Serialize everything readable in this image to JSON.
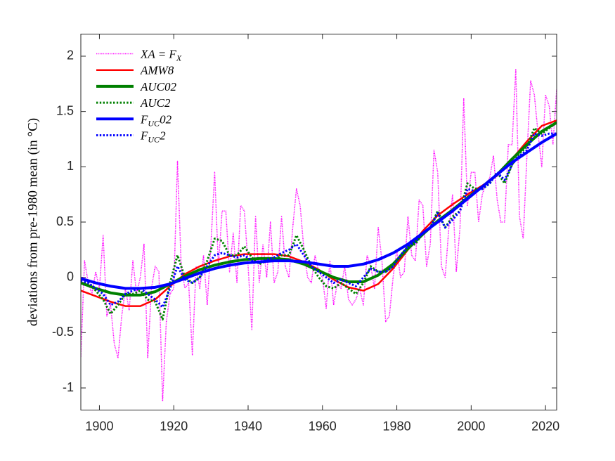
{
  "chart_data": {
    "type": "line",
    "ylabel": "deviations from pre-1980 mean (in °C)",
    "xlim": [
      1895,
      2023
    ],
    "ylim": [
      -1.2,
      2.2
    ],
    "xticks": [
      1900,
      1920,
      1940,
      1960,
      1980,
      2000,
      2020
    ],
    "yticks": [
      -1,
      -0.5,
      0,
      0.5,
      1,
      1.5,
      2
    ],
    "grid": false,
    "legend": "upper left",
    "series": [
      {
        "name": "XA = F_{X}",
        "color": "#ff00ff",
        "linestyle": "dotted",
        "linewidth": 1.5,
        "x": [
          1895,
          1896,
          1897,
          1898,
          1899,
          1900,
          1901,
          1902,
          1903,
          1904,
          1905,
          1906,
          1907,
          1908,
          1909,
          1910,
          1911,
          1912,
          1913,
          1914,
          1915,
          1916,
          1917,
          1918,
          1919,
          1920,
          1921,
          1922,
          1923,
          1924,
          1925,
          1926,
          1927,
          1928,
          1929,
          1930,
          1931,
          1932,
          1933,
          1934,
          1935,
          1936,
          1937,
          1938,
          1939,
          1940,
          1941,
          1942,
          1943,
          1944,
          1945,
          1946,
          1947,
          1948,
          1949,
          1950,
          1951,
          1952,
          1953,
          1954,
          1955,
          1956,
          1957,
          1958,
          1959,
          1960,
          1961,
          1962,
          1963,
          1964,
          1965,
          1966,
          1967,
          1968,
          1969,
          1970,
          1971,
          1972,
          1973,
          1974,
          1975,
          1976,
          1977,
          1978,
          1979,
          1980,
          1981,
          1982,
          1983,
          1984,
          1985,
          1986,
          1987,
          1988,
          1989,
          1990,
          1991,
          1992,
          1993,
          1994,
          1995,
          1996,
          1997,
          1998,
          1999,
          2000,
          2001,
          2002,
          2003,
          2004,
          2005,
          2006,
          2007,
          2008,
          2009,
          2010,
          2011,
          2012,
          2013,
          2014,
          2015,
          2016,
          2017,
          2018,
          2019,
          2020,
          2021,
          2022,
          2023
        ],
        "values": [
          -0.72,
          0.15,
          -0.05,
          -0.15,
          0.05,
          -0.1,
          0.38,
          -0.35,
          -0.25,
          -0.6,
          -0.73,
          -0.35,
          -0.1,
          -0.3,
          0.15,
          -0.15,
          0.0,
          0.3,
          -0.73,
          -0.1,
          0.1,
          0.05,
          -1.12,
          -0.4,
          -0.15,
          -0.1,
          1.05,
          0.1,
          -0.1,
          -0.05,
          -0.7,
          0.1,
          -0.1,
          0.2,
          -0.25,
          0.3,
          0.95,
          0.1,
          0.6,
          0.6,
          0.05,
          0.4,
          -0.05,
          0.65,
          0.6,
          0.1,
          -0.48,
          0.55,
          -0.05,
          0.3,
          0.0,
          0.5,
          -0.05,
          0.05,
          0.55,
          0.1,
          0.0,
          0.45,
          0.8,
          0.65,
          0.25,
          0.0,
          -0.05,
          0.2,
          0.05,
          0.0,
          -0.28,
          0.15,
          -0.25,
          -0.05,
          -0.1,
          0.1,
          -0.2,
          -0.25,
          -0.2,
          -0.1,
          -0.25,
          0.2,
          0.1,
          -0.1,
          0.45,
          0.15,
          -0.4,
          -0.35,
          0.0,
          0.25,
          0.0,
          0.05,
          0.55,
          0.2,
          0.15,
          0.7,
          0.65,
          0.1,
          0.3,
          1.15,
          0.95,
          0.1,
          0.0,
          0.45,
          0.75,
          0.05,
          0.45,
          1.62,
          0.65,
          0.95,
          0.95,
          0.5,
          0.75,
          0.85,
          0.9,
          1.1,
          0.7,
          0.5,
          0.5,
          1.2,
          1.2,
          1.88,
          0.55,
          0.35,
          1.1,
          1.78,
          1.65,
          1.3,
          1.0,
          1.65,
          1.55,
          1.2,
          1.7
        ]
      },
      {
        "name": "AMW8",
        "color": "#ff0000",
        "linestyle": "solid",
        "linewidth": 2.5,
        "x": [
          1895,
          1899,
          1903,
          1907,
          1911,
          1915,
          1919,
          1923,
          1927,
          1931,
          1935,
          1939,
          1943,
          1947,
          1951,
          1955,
          1959,
          1963,
          1967,
          1971,
          1975,
          1979,
          1983,
          1987,
          1991,
          1995,
          1999,
          2003,
          2007,
          2011,
          2015,
          2019,
          2023
        ],
        "values": [
          -0.12,
          -0.17,
          -0.22,
          -0.26,
          -0.26,
          -0.2,
          -0.08,
          0.03,
          0.1,
          0.15,
          0.19,
          0.21,
          0.21,
          0.21,
          0.19,
          0.14,
          0.07,
          -0.02,
          -0.09,
          -0.12,
          -0.06,
          0.08,
          0.25,
          0.42,
          0.56,
          0.66,
          0.75,
          0.83,
          0.92,
          1.07,
          1.23,
          1.37,
          1.42
        ]
      },
      {
        "name": "AUC02",
        "color": "#008000",
        "linestyle": "solid",
        "linewidth": 4,
        "x": [
          1895,
          1899,
          1903,
          1907,
          1911,
          1915,
          1919,
          1923,
          1927,
          1931,
          1935,
          1939,
          1943,
          1947,
          1951,
          1955,
          1959,
          1963,
          1967,
          1971,
          1975,
          1979,
          1983,
          1987,
          1991,
          1995,
          1999,
          2003,
          2007,
          2011,
          2015,
          2019,
          2023
        ],
        "values": [
          -0.05,
          -0.1,
          -0.14,
          -0.16,
          -0.16,
          -0.13,
          -0.06,
          0.01,
          0.07,
          0.11,
          0.14,
          0.16,
          0.17,
          0.17,
          0.16,
          0.12,
          0.06,
          0.0,
          -0.04,
          -0.04,
          0.02,
          0.12,
          0.26,
          0.39,
          0.51,
          0.61,
          0.72,
          0.82,
          0.93,
          1.07,
          1.2,
          1.32,
          1.4
        ]
      },
      {
        "name": "AUC2",
        "color": "#008000",
        "linestyle": "dotted",
        "linewidth": 3,
        "x": [
          1895,
          1897,
          1899,
          1901,
          1903,
          1905,
          1907,
          1909,
          1911,
          1913,
          1915,
          1917,
          1919,
          1921,
          1923,
          1925,
          1927,
          1929,
          1931,
          1933,
          1935,
          1937,
          1939,
          1941,
          1943,
          1945,
          1947,
          1949,
          1951,
          1953,
          1955,
          1957,
          1959,
          1961,
          1963,
          1965,
          1967,
          1969,
          1971,
          1973,
          1975,
          1977,
          1979,
          1981,
          1983,
          1985,
          1987,
          1989,
          1991,
          1993,
          1995,
          1997,
          1999,
          2001,
          2003,
          2005,
          2007,
          2009,
          2011,
          2013,
          2015,
          2017,
          2019,
          2021,
          2023
        ],
        "values": [
          -0.05,
          -0.05,
          -0.12,
          -0.2,
          -0.33,
          -0.25,
          -0.15,
          -0.15,
          -0.12,
          -0.2,
          -0.22,
          -0.38,
          -0.05,
          0.2,
          0.0,
          -0.05,
          0.0,
          0.15,
          0.35,
          0.33,
          0.2,
          0.2,
          0.28,
          0.18,
          0.12,
          0.15,
          0.15,
          0.2,
          0.2,
          0.38,
          0.25,
          0.1,
          0.0,
          -0.08,
          -0.1,
          -0.05,
          -0.1,
          -0.15,
          -0.05,
          0.1,
          0.05,
          0.05,
          0.1,
          0.2,
          0.28,
          0.3,
          0.4,
          0.45,
          0.6,
          0.45,
          0.55,
          0.6,
          0.85,
          0.8,
          0.8,
          0.85,
          0.95,
          0.85,
          1.02,
          1.12,
          1.18,
          1.35,
          1.3,
          1.35,
          1.4
        ]
      },
      {
        "name": "F_{UC}02",
        "color": "#0000ff",
        "linestyle": "solid",
        "linewidth": 4,
        "x": [
          1895,
          1899,
          1903,
          1907,
          1911,
          1915,
          1919,
          1923,
          1927,
          1931,
          1935,
          1939,
          1943,
          1947,
          1951,
          1955,
          1959,
          1963,
          1967,
          1971,
          1975,
          1979,
          1983,
          1987,
          1991,
          1995,
          1999,
          2003,
          2007,
          2011,
          2015,
          2019,
          2023
        ],
        "values": [
          -0.01,
          -0.05,
          -0.08,
          -0.1,
          -0.1,
          -0.09,
          -0.06,
          -0.01,
          0.04,
          0.08,
          0.11,
          0.13,
          0.14,
          0.15,
          0.15,
          0.14,
          0.12,
          0.1,
          0.1,
          0.12,
          0.16,
          0.22,
          0.3,
          0.4,
          0.5,
          0.6,
          0.71,
          0.82,
          0.93,
          1.04,
          1.13,
          1.22,
          1.3
        ]
      },
      {
        "name": "F_{UC}2",
        "color": "#0000ff",
        "linestyle": "dotted",
        "linewidth": 3,
        "x": [
          1895,
          1897,
          1899,
          1901,
          1903,
          1905,
          1907,
          1909,
          1911,
          1913,
          1915,
          1917,
          1919,
          1921,
          1923,
          1925,
          1927,
          1929,
          1931,
          1933,
          1935,
          1937,
          1939,
          1941,
          1943,
          1945,
          1947,
          1949,
          1951,
          1953,
          1955,
          1957,
          1959,
          1961,
          1963,
          1965,
          1967,
          1969,
          1971,
          1973,
          1975,
          1977,
          1979,
          1981,
          1983,
          1985,
          1987,
          1989,
          1991,
          1993,
          1995,
          1997,
          1999,
          2001,
          2003,
          2005,
          2007,
          2009,
          2011,
          2013,
          2015,
          2017,
          2019,
          2021,
          2023
        ],
        "values": [
          -0.03,
          -0.05,
          -0.1,
          -0.15,
          -0.25,
          -0.22,
          -0.15,
          -0.12,
          -0.1,
          -0.15,
          -0.2,
          -0.27,
          -0.1,
          0.1,
          -0.02,
          -0.05,
          0.0,
          0.1,
          0.2,
          0.22,
          0.2,
          0.18,
          0.2,
          0.15,
          0.13,
          0.16,
          0.18,
          0.22,
          0.25,
          0.3,
          0.2,
          0.1,
          0.05,
          0.0,
          -0.05,
          -0.02,
          -0.05,
          -0.08,
          0.0,
          0.08,
          0.05,
          0.05,
          0.1,
          0.2,
          0.28,
          0.32,
          0.4,
          0.45,
          0.58,
          0.45,
          0.52,
          0.6,
          0.8,
          0.78,
          0.8,
          0.85,
          0.95,
          0.88,
          1.02,
          1.1,
          1.15,
          1.3,
          1.28,
          1.3,
          1.3
        ]
      }
    ]
  }
}
